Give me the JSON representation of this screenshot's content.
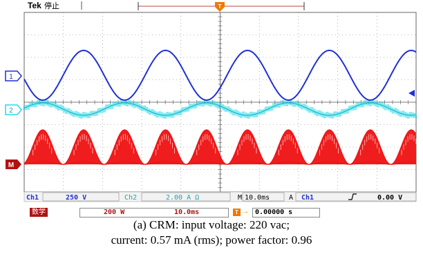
{
  "colors": {
    "ch1": "#1f2fd6",
    "ch2": "#27d8e8",
    "math": "#ee1111",
    "trigger": "#f07800",
    "grid": "#7a7a7a"
  },
  "header": {
    "brand": "Tek",
    "status": "停止",
    "trigger_marker": "T"
  },
  "markers": {
    "ch1": "1",
    "ch2": "2",
    "math": "M",
    "ch1_arrow_icon": "left-arrow-icon"
  },
  "status_row1": {
    "ch1_label": "Ch1",
    "ch1_scale": "250 V",
    "ch2_label": "Ch2",
    "ch2_scale": "2.00 A Ω",
    "timebase_prefix": "M",
    "timebase": "10.0ms",
    "acq_mode": "A",
    "trig_source": "Ch1",
    "trig_slope_icon": "rising-edge-icon",
    "trig_level": "0.00 V"
  },
  "status_row2": {
    "math_label": "数学",
    "math_scale": "200 W",
    "math_time": "10.0ms",
    "trig_pos_marker": "T",
    "trig_offset": "0.00000 s"
  },
  "caption": {
    "line1": "(a) CRM: input voltage: 220 vac;",
    "line2": "current: 0.57 mA (rms); power factor: 0.96"
  },
  "chart_data": {
    "type": "line",
    "xlabel": "",
    "ylabel": "",
    "grid": true,
    "timebase_per_div": "10.0ms",
    "x_divisions": 10,
    "series": [
      {
        "name": "Ch1",
        "waveform": "sine",
        "cycles_shown": 5
      },
      {
        "name": "Ch2",
        "waveform": "sine",
        "cycles_shown": 5
      },
      {
        "name": "M",
        "waveform": "rectified power pulses",
        "pulses_shown": 10
      }
    ]
  }
}
